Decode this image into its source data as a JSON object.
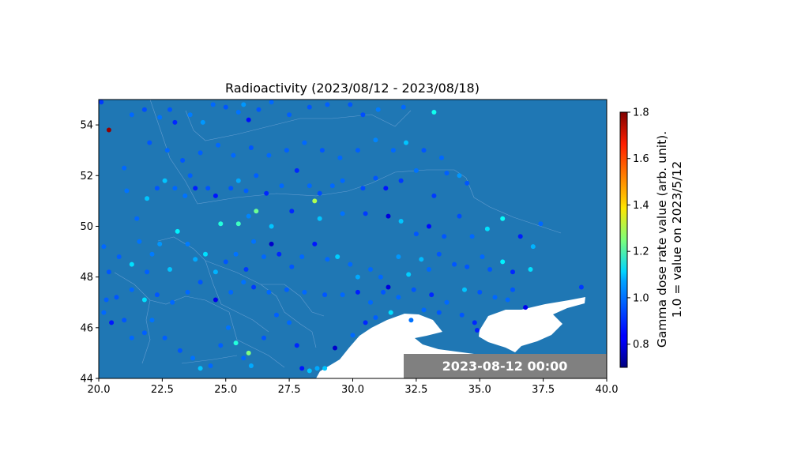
{
  "chart_data": {
    "type": "scatter",
    "title": "Radioactivity (2023/08/12 - 2023/08/18)",
    "xlabel": "",
    "ylabel": "",
    "xlim": [
      20.0,
      40.0
    ],
    "ylim": [
      44,
      55
    ],
    "x_ticks": [
      "20.0",
      "22.5",
      "25.0",
      "27.5",
      "30.0",
      "32.5",
      "35.0",
      "37.5",
      "40.0"
    ],
    "y_ticks": [
      "44",
      "46",
      "48",
      "50",
      "52",
      "54"
    ],
    "timestamp": "2023-08-12 00:00",
    "colorbar": {
      "label_line1": "Gamma dose rate value (arb. unit).",
      "label_line2": "1.0 = value on 2023/5/12",
      "range": [
        0.7,
        1.8
      ],
      "ticks": [
        "0.8",
        "1.0",
        "1.2",
        "1.4",
        "1.6",
        "1.8"
      ],
      "colormap": "jet"
    },
    "colors": {
      "land": "#1f77b4",
      "sea": "#ffffff",
      "timestamp_box": "#808080",
      "border_lines": "#6fa3d4"
    },
    "points": [
      [
        20.1,
        54.9,
        0.9
      ],
      [
        20.4,
        53.8,
        1.78
      ],
      [
        21.3,
        54.4,
        0.95
      ],
      [
        21.8,
        54.6,
        0.92
      ],
      [
        22.4,
        54.3,
        0.96
      ],
      [
        22.8,
        54.6,
        0.93
      ],
      [
        23.0,
        54.1,
        0.88
      ],
      [
        23.6,
        54.4,
        0.97
      ],
      [
        24.1,
        54.1,
        1.0
      ],
      [
        24.5,
        54.8,
        0.95
      ],
      [
        25.0,
        54.7,
        0.93
      ],
      [
        25.5,
        54.5,
        0.96
      ],
      [
        25.7,
        54.8,
        1.0
      ],
      [
        25.9,
        54.2,
        0.85
      ],
      [
        26.3,
        54.6,
        0.93
      ],
      [
        26.8,
        54.9,
        0.95
      ],
      [
        27.5,
        54.4,
        0.94
      ],
      [
        28.3,
        54.7,
        0.93
      ],
      [
        29.0,
        54.8,
        0.94
      ],
      [
        29.9,
        54.8,
        0.93
      ],
      [
        30.4,
        54.4,
        0.92
      ],
      [
        31.0,
        54.6,
        0.97
      ],
      [
        32.0,
        54.7,
        0.95
      ],
      [
        33.2,
        54.5,
        1.13
      ],
      [
        21.0,
        52.3,
        0.95
      ],
      [
        21.1,
        51.4,
        0.96
      ],
      [
        21.5,
        50.3,
        0.95
      ],
      [
        21.9,
        51.1,
        1.05
      ],
      [
        22.3,
        51.5,
        0.93
      ],
      [
        22.6,
        51.8,
        1.05
      ],
      [
        23.0,
        51.5,
        0.95
      ],
      [
        23.4,
        51.2,
        0.96
      ],
      [
        23.6,
        52.0,
        0.94
      ],
      [
        23.8,
        51.5,
        0.87
      ],
      [
        24.3,
        51.5,
        0.93
      ],
      [
        24.6,
        51.2,
        0.86
      ],
      [
        25.2,
        51.5,
        0.93
      ],
      [
        25.5,
        51.8,
        1.02
      ],
      [
        25.8,
        51.4,
        0.94
      ],
      [
        26.2,
        52.0,
        0.94
      ],
      [
        26.6,
        51.3,
        0.88
      ],
      [
        27.2,
        51.6,
        0.95
      ],
      [
        27.8,
        52.2,
        0.88
      ],
      [
        28.3,
        51.6,
        0.95
      ],
      [
        28.7,
        51.3,
        0.92
      ],
      [
        29.2,
        51.6,
        0.95
      ],
      [
        29.6,
        51.8,
        0.95
      ],
      [
        30.4,
        51.5,
        0.92
      ],
      [
        30.9,
        51.9,
        0.93
      ],
      [
        31.3,
        51.5,
        0.86
      ],
      [
        31.9,
        51.8,
        0.9
      ],
      [
        32.5,
        52.2,
        0.96
      ],
      [
        33.2,
        51.2,
        0.9
      ],
      [
        33.7,
        52.1,
        0.94
      ],
      [
        34.2,
        52.0,
        1.0
      ],
      [
        34.5,
        51.7,
        0.93
      ],
      [
        20.2,
        49.2,
        0.95
      ],
      [
        20.4,
        48.2,
        0.93
      ],
      [
        20.8,
        48.8,
        0.94
      ],
      [
        21.3,
        48.5,
        1.08
      ],
      [
        21.6,
        49.4,
        0.96
      ],
      [
        21.9,
        48.2,
        0.94
      ],
      [
        22.1,
        48.9,
        0.97
      ],
      [
        22.4,
        49.3,
        1.0
      ],
      [
        22.8,
        48.3,
        1.05
      ],
      [
        23.1,
        49.8,
        1.1
      ],
      [
        23.5,
        49.3,
        0.97
      ],
      [
        23.8,
        48.7,
        1.02
      ],
      [
        24.2,
        48.9,
        1.08
      ],
      [
        24.6,
        48.2,
        1.03
      ],
      [
        25.0,
        48.6,
        0.93
      ],
      [
        25.4,
        48.9,
        0.96
      ],
      [
        25.8,
        48.3,
        0.9
      ],
      [
        26.1,
        49.4,
        0.96
      ],
      [
        26.5,
        48.8,
        0.95
      ],
      [
        26.8,
        49.3,
        0.78
      ],
      [
        27.1,
        48.9,
        0.88
      ],
      [
        27.6,
        48.4,
        0.93
      ],
      [
        28.0,
        48.8,
        0.95
      ],
      [
        28.5,
        49.3,
        0.86
      ],
      [
        29.0,
        48.7,
        0.95
      ],
      [
        29.4,
        48.8,
        1.06
      ],
      [
        29.9,
        48.5,
        0.95
      ],
      [
        30.2,
        48.0,
        1.02
      ],
      [
        30.7,
        48.3,
        0.95
      ],
      [
        31.1,
        48.0,
        0.95
      ],
      [
        31.4,
        47.6,
        0.8
      ],
      [
        31.8,
        48.8,
        1.0
      ],
      [
        32.2,
        48.1,
        1.06
      ],
      [
        32.7,
        48.7,
        1.04
      ],
      [
        33.0,
        48.3,
        0.95
      ],
      [
        33.4,
        48.9,
        0.93
      ],
      [
        34.0,
        48.5,
        0.93
      ],
      [
        34.5,
        48.4,
        0.93
      ],
      [
        35.1,
        48.8,
        0.95
      ],
      [
        35.4,
        48.3,
        0.93
      ],
      [
        35.9,
        48.6,
        1.1
      ],
      [
        36.3,
        48.2,
        0.88
      ],
      [
        37.0,
        48.3,
        1.08
      ],
      [
        37.1,
        49.2,
        1.03
      ],
      [
        24.8,
        50.1,
        1.15
      ],
      [
        25.5,
        50.1,
        1.18
      ],
      [
        25.9,
        50.4,
        0.98
      ],
      [
        26.2,
        50.6,
        1.23
      ],
      [
        26.8,
        50.0,
        1.05
      ],
      [
        27.6,
        50.6,
        0.88
      ],
      [
        28.5,
        51.0,
        1.3
      ],
      [
        28.7,
        50.3,
        1.05
      ],
      [
        29.6,
        50.5,
        0.96
      ],
      [
        30.5,
        50.5,
        0.9
      ],
      [
        31.4,
        50.4,
        0.8
      ],
      [
        31.9,
        50.2,
        1.05
      ],
      [
        32.5,
        49.7,
        0.93
      ],
      [
        33.0,
        50.0,
        0.85
      ],
      [
        33.6,
        49.6,
        0.93
      ],
      [
        34.2,
        50.4,
        0.92
      ],
      [
        34.7,
        49.6,
        0.95
      ],
      [
        35.3,
        49.9,
        1.08
      ],
      [
        35.9,
        50.3,
        1.12
      ],
      [
        36.6,
        49.6,
        0.87
      ],
      [
        37.4,
        50.1,
        0.95
      ],
      [
        20.2,
        46.6,
        0.95
      ],
      [
        20.5,
        46.2,
        0.86
      ],
      [
        21.0,
        46.3,
        0.93
      ],
      [
        21.3,
        45.6,
        0.95
      ],
      [
        21.8,
        45.8,
        0.94
      ],
      [
        22.1,
        46.3,
        0.96
      ],
      [
        22.6,
        45.6,
        0.94
      ],
      [
        23.2,
        45.1,
        0.93
      ],
      [
        23.7,
        44.8,
        0.96
      ],
      [
        24.0,
        44.4,
        1.05
      ],
      [
        24.4,
        44.5,
        0.95
      ],
      [
        24.8,
        45.3,
        0.94
      ],
      [
        25.1,
        46.0,
        0.96
      ],
      [
        25.4,
        45.4,
        1.15
      ],
      [
        25.7,
        44.8,
        0.95
      ],
      [
        25.9,
        45.0,
        1.25
      ],
      [
        26.0,
        44.5,
        1.02
      ],
      [
        26.5,
        45.6,
        0.93
      ],
      [
        27.0,
        46.5,
        0.94
      ],
      [
        27.5,
        46.2,
        0.95
      ],
      [
        27.8,
        45.3,
        0.88
      ],
      [
        28.0,
        44.4,
        0.86
      ],
      [
        28.3,
        44.3,
        1.05
      ],
      [
        28.6,
        44.4,
        1.02
      ],
      [
        28.9,
        44.4,
        1.05
      ],
      [
        29.3,
        45.2,
        0.78
      ],
      [
        30.0,
        45.7,
        0.95
      ],
      [
        30.5,
        46.2,
        0.88
      ],
      [
        30.9,
        46.4,
        0.94
      ],
      [
        31.5,
        46.6,
        1.08
      ],
      [
        32.3,
        46.3,
        0.96
      ],
      [
        32.8,
        46.7,
        0.95
      ],
      [
        33.4,
        46.6,
        0.93
      ],
      [
        34.3,
        46.5,
        0.93
      ],
      [
        34.8,
        46.2,
        0.88
      ],
      [
        34.9,
        45.9,
        0.87
      ],
      [
        36.1,
        47.1,
        0.95
      ],
      [
        36.8,
        46.8,
        0.82
      ],
      [
        39.0,
        47.6,
        0.9
      ],
      [
        20.3,
        47.1,
        0.94
      ],
      [
        20.7,
        47.2,
        0.93
      ],
      [
        21.3,
        47.5,
        0.95
      ],
      [
        21.8,
        47.1,
        1.08
      ],
      [
        22.3,
        47.3,
        0.93
      ],
      [
        22.9,
        47.0,
        0.95
      ],
      [
        23.5,
        47.4,
        0.95
      ],
      [
        24.0,
        47.8,
        0.93
      ],
      [
        24.6,
        47.1,
        0.82
      ],
      [
        25.2,
        47.4,
        0.95
      ],
      [
        25.7,
        47.8,
        0.96
      ],
      [
        26.1,
        47.6,
        0.9
      ],
      [
        26.7,
        47.4,
        0.95
      ],
      [
        27.4,
        47.5,
        0.94
      ],
      [
        28.1,
        47.4,
        0.95
      ],
      [
        28.9,
        47.3,
        0.93
      ],
      [
        29.6,
        47.3,
        0.95
      ],
      [
        30.2,
        47.4,
        0.87
      ],
      [
        30.7,
        47.0,
        0.95
      ],
      [
        31.2,
        47.4,
        0.93
      ],
      [
        31.8,
        47.2,
        0.95
      ],
      [
        32.4,
        47.5,
        0.93
      ],
      [
        33.1,
        47.3,
        0.88
      ],
      [
        33.7,
        47.0,
        0.95
      ],
      [
        34.4,
        47.5,
        1.05
      ],
      [
        35.0,
        47.4,
        0.93
      ],
      [
        35.6,
        47.2,
        0.95
      ],
      [
        36.3,
        47.5,
        0.93
      ],
      [
        22.0,
        53.3,
        0.93
      ],
      [
        22.7,
        53.0,
        0.95
      ],
      [
        23.3,
        52.6,
        0.93
      ],
      [
        24.0,
        52.9,
        0.94
      ],
      [
        24.7,
        53.2,
        0.95
      ],
      [
        25.3,
        52.8,
        0.95
      ],
      [
        26.0,
        53.1,
        0.93
      ],
      [
        26.7,
        52.8,
        0.95
      ],
      [
        27.4,
        53.0,
        0.94
      ],
      [
        28.1,
        53.3,
        0.95
      ],
      [
        28.8,
        53.0,
        0.93
      ],
      [
        29.5,
        52.7,
        0.95
      ],
      [
        30.2,
        53.0,
        0.94
      ],
      [
        30.9,
        53.4,
        0.98
      ],
      [
        31.6,
        53.0,
        0.95
      ],
      [
        32.1,
        53.3,
        1.05
      ],
      [
        32.8,
        53.0,
        0.93
      ],
      [
        33.5,
        52.7,
        0.95
      ]
    ]
  }
}
